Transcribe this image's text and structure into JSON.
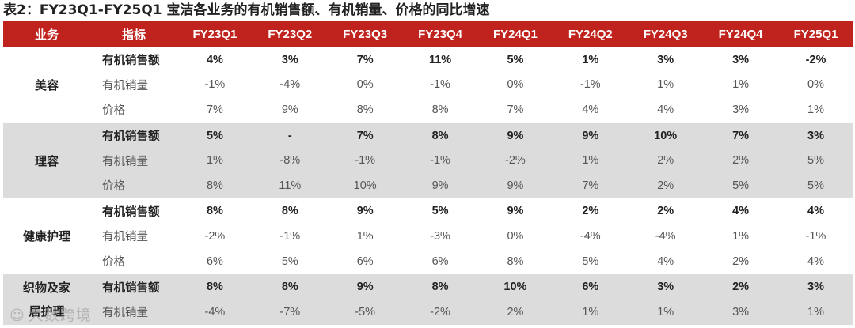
{
  "title": "表2：FY23Q1-FY25Q1 宝洁各业务的有机销售额、有机销量、价格的同比增速",
  "table": {
    "headers": [
      "业务",
      "指标",
      "FY23Q1",
      "FY23Q2",
      "FY23Q3",
      "FY23Q4",
      "FY24Q1",
      "FY24Q2",
      "FY24Q3",
      "FY24Q4",
      "FY25Q1"
    ],
    "groups": [
      {
        "segment": "美容",
        "rows": [
          {
            "metric": "有机销售额",
            "values": [
              "4%",
              "3%",
              "7%",
              "11%",
              "5%",
              "1%",
              "3%",
              "3%",
              "-2%"
            ]
          },
          {
            "metric": "有机销量",
            "values": [
              "-1%",
              "-4%",
              "0%",
              "-1%",
              "0%",
              "-1%",
              "1%",
              "1%",
              "0%"
            ]
          },
          {
            "metric": "价格",
            "values": [
              "7%",
              "9%",
              "8%",
              "8%",
              "7%",
              "4%",
              "4%",
              "3%",
              "1%"
            ]
          }
        ]
      },
      {
        "segment": "理容",
        "rows": [
          {
            "metric": "有机销售额",
            "values": [
              "5%",
              "-",
              "7%",
              "8%",
              "9%",
              "9%",
              "10%",
              "7%",
              "3%"
            ]
          },
          {
            "metric": "有机销量",
            "values": [
              "1%",
              "-8%",
              "-1%",
              "-1%",
              "-2%",
              "1%",
              "2%",
              "2%",
              "5%"
            ]
          },
          {
            "metric": "价格",
            "values": [
              "8%",
              "11%",
              "10%",
              "9%",
              "9%",
              "7%",
              "2%",
              "5%",
              "5%"
            ]
          }
        ]
      },
      {
        "segment": "健康护理",
        "rows": [
          {
            "metric": "有机销售额",
            "values": [
              "8%",
              "8%",
              "9%",
              "5%",
              "9%",
              "2%",
              "2%",
              "4%",
              "4%"
            ]
          },
          {
            "metric": "有机销量",
            "values": [
              "-2%",
              "-1%",
              "1%",
              "-3%",
              "0%",
              "-4%",
              "-4%",
              "1%",
              "-1%"
            ]
          },
          {
            "metric": "价格",
            "values": [
              "6%",
              "5%",
              "6%",
              "6%",
              "8%",
              "5%",
              "4%",
              "2%",
              "4%"
            ]
          }
        ]
      },
      {
        "segment": "织物及家居护理",
        "rows": [
          {
            "metric": "有机销售额",
            "values": [
              "8%",
              "8%",
              "9%",
              "8%",
              "10%",
              "6%",
              "3%",
              "2%",
              "3%"
            ]
          },
          {
            "metric": "有机销量",
            "values": [
              "-4%",
              "-7%",
              "-5%",
              "-2%",
              "2%",
              "1%",
              "1%",
              "3%",
              "1%"
            ]
          }
        ]
      }
    ]
  },
  "watermark": {
    "icon": "chat-bubble-icon",
    "text": "大数跨境"
  }
}
